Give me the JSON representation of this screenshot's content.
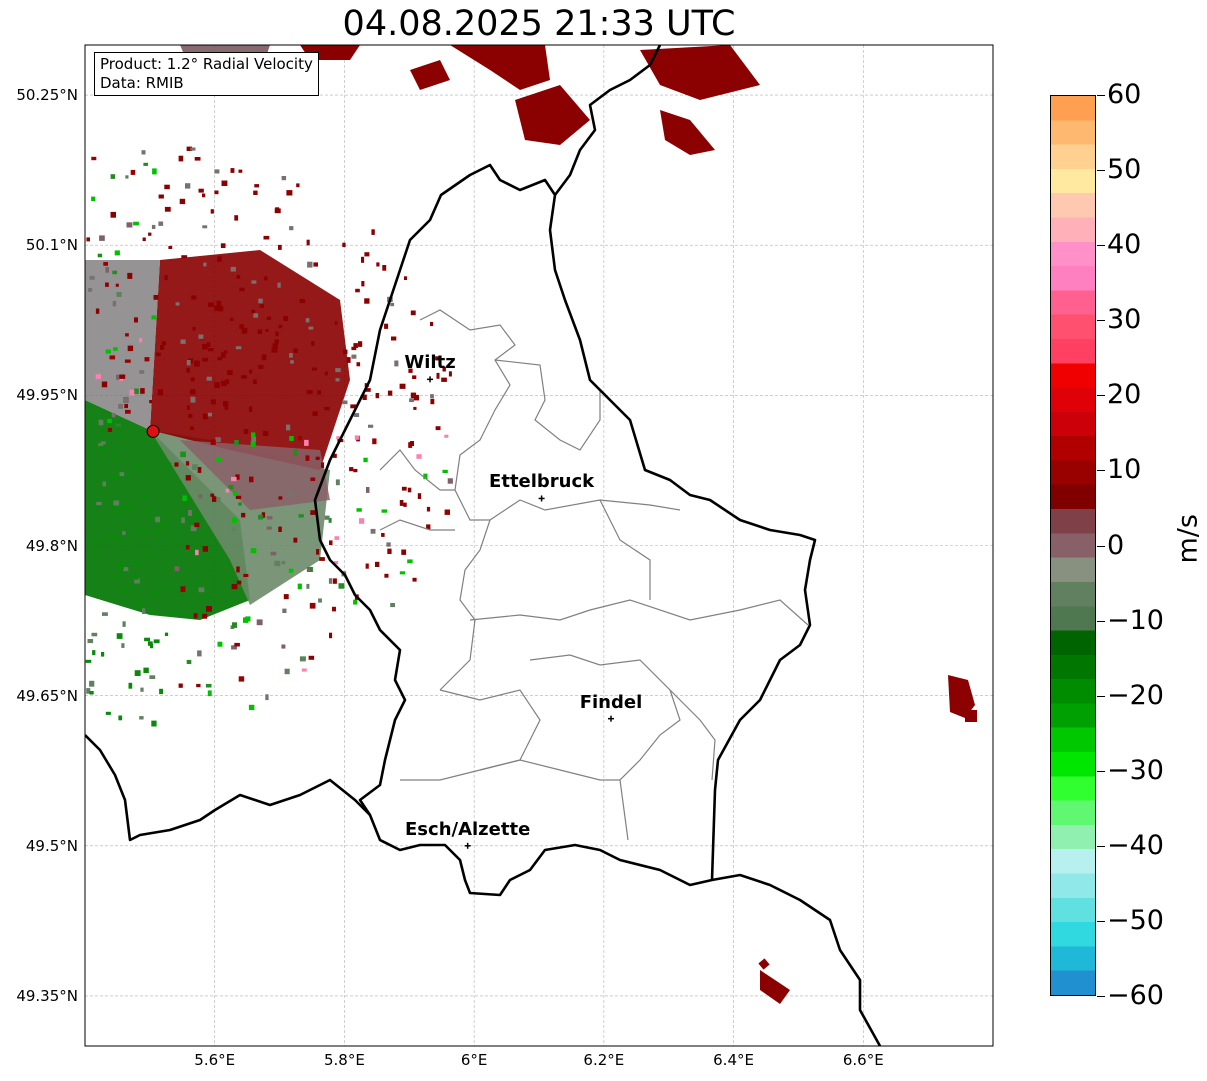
{
  "title": "04.08.2025 21:33 UTC",
  "product_box": {
    "product": "Product: 1.2° Radial Velocity",
    "data": "Data: RMIB"
  },
  "lat_ticks": [
    "50.25°N",
    "50.1°N",
    "49.95°N",
    "49.8°N",
    "49.65°N",
    "49.5°N",
    "49.35°N"
  ],
  "lat_values": [
    50.25,
    50.1,
    49.95,
    49.8,
    49.65,
    49.5,
    49.35
  ],
  "lon_ticks": [
    "5.6°E",
    "5.8°E",
    "6°E",
    "6.2°E",
    "6.4°E",
    "6.6°E"
  ],
  "lon_values": [
    5.6,
    5.8,
    6.0,
    6.2,
    6.4,
    6.6
  ],
  "extent": {
    "lon_min": 5.4,
    "lon_max": 6.8,
    "lat_min": 49.3,
    "lat_max": 50.3
  },
  "radar": {
    "name": "radar-site",
    "lon": 5.505,
    "lat": 49.914,
    "color": "#e01010"
  },
  "cities": [
    {
      "name": "Wiltz",
      "lon": 5.932,
      "lat": 49.966
    },
    {
      "name": "Ettelbruck",
      "lon": 6.104,
      "lat": 49.847
    },
    {
      "name": "Findel",
      "lon": 6.211,
      "lat": 49.627
    },
    {
      "name": "Esch/Alzette",
      "lon": 5.99,
      "lat": 49.5
    }
  ],
  "colorbar": {
    "unit": "m/s",
    "min": -60,
    "max": 60,
    "ticks": [
      60,
      50,
      40,
      30,
      20,
      10,
      0,
      -10,
      -20,
      -30,
      -40,
      -50,
      -60
    ],
    "tick_labels": [
      "60",
      "50",
      "40",
      "30",
      "20",
      "10",
      "0",
      "−10",
      "−20",
      "−30",
      "−40",
      "−50",
      "−60"
    ],
    "colors_top_to_bottom": [
      "#ffa050",
      "#ffb870",
      "#ffd090",
      "#ffe8a0",
      "#ffc8b0",
      "#ffb0b8",
      "#ff90c8",
      "#ff80c0",
      "#ff6090",
      "#ff5070",
      "#ff4060",
      "#f00000",
      "#e00008",
      "#cc0008",
      "#b00000",
      "#990000",
      "#800000",
      "#804048",
      "#886068",
      "#889080",
      "#608060",
      "#507850",
      "#006400",
      "#007800",
      "#008c00",
      "#00a000",
      "#00c800",
      "#00e600",
      "#30ff30",
      "#60f870",
      "#90f0b0",
      "#b8f0f0",
      "#90e8e8",
      "#60e0e0",
      "#30d8e0",
      "#20b8d8",
      "#2090d0"
    ]
  },
  "colors": {
    "inbound_green": "#008000",
    "outbound_red": "#8b0000",
    "zero_gray": "#7a8a78"
  }
}
